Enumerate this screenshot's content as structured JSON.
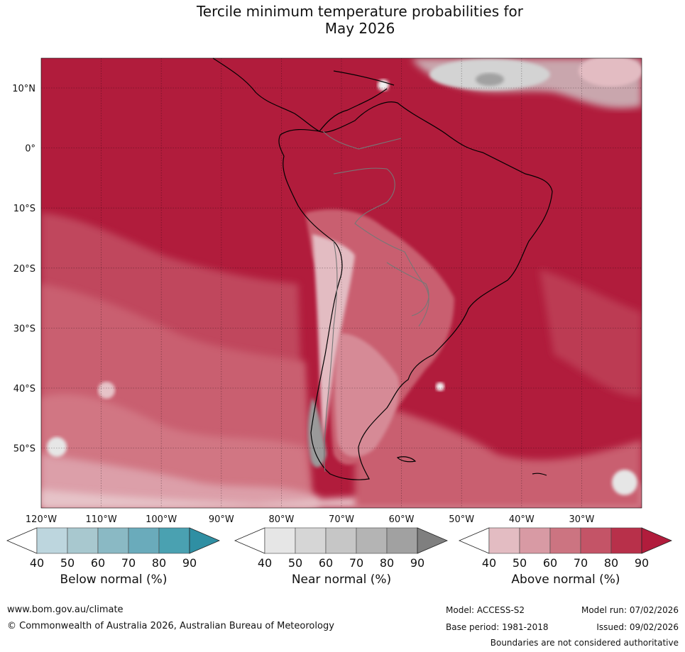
{
  "title": {
    "line1": "Tercile minimum temperature probabilities for",
    "line2": "May 2026"
  },
  "map": {
    "lat_labels": [
      "10°N",
      "0°",
      "10°S",
      "20°S",
      "30°S",
      "40°S",
      "50°S"
    ],
    "lon_labels": [
      "120°W",
      "110°W",
      "100°W",
      "90°W",
      "80°W",
      "70°W",
      "60°W",
      "50°W",
      "40°W",
      "30°W"
    ],
    "colors": {
      "above": [
        "#e3bcc2",
        "#d89aa4",
        "#cc7481",
        "#c45467",
        "#b8304a",
        "#b11c3c"
      ],
      "near": [
        "#e6e6e6",
        "#d6d6d6",
        "#c6c6c6",
        "#b4b4b4",
        "#a1a1a1",
        "#7f7f7f"
      ],
      "below": [
        "#bdd6de",
        "#a8c8cf",
        "#8ab9c4",
        "#6aabbb",
        "#4aa1b1",
        "#2f8fa3"
      ]
    }
  },
  "colorbars": [
    {
      "id": "below",
      "label": "Below normal (%)",
      "ticks": [
        "40",
        "50",
        "60",
        "70",
        "80",
        "90"
      ]
    },
    {
      "id": "near",
      "label": "Near normal (%)",
      "ticks": [
        "40",
        "50",
        "60",
        "70",
        "80",
        "90"
      ]
    },
    {
      "id": "above",
      "label": "Above normal (%)",
      "ticks": [
        "40",
        "50",
        "60",
        "70",
        "80",
        "90"
      ]
    }
  ],
  "footer": {
    "website": "www.bom.gov.au/climate",
    "copyright": "© Commonwealth of Australia 2026, Australian Bureau of Meteorology",
    "model": "Model: ACCESS-S2",
    "model_run": "Model run: 07/02/2026",
    "base_period": "Base period: 1981-2018",
    "issued": "Issued: 09/02/2026",
    "boundaries": "Boundaries are not considered authoritative"
  }
}
